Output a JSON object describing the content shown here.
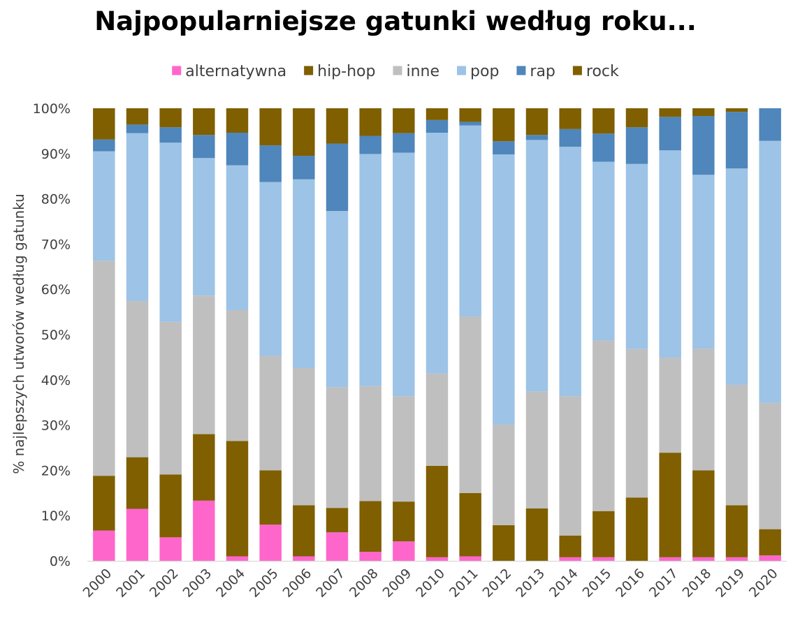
{
  "chart_data": {
    "type": "bar",
    "stacked": true,
    "title": "Najpopularniejsze gatunki według roku...",
    "xlabel": "",
    "ylabel": "% najlepszych utworów według gatunku",
    "ylim": [
      0,
      100
    ],
    "y_ticks": [
      "0%",
      "10%",
      "20%",
      "30%",
      "40%",
      "50%",
      "60%",
      "70%",
      "80%",
      "90%",
      "100%"
    ],
    "grid": false,
    "legend_position": "top",
    "categories": [
      "2000",
      "2001",
      "2002",
      "2003",
      "2004",
      "2005",
      "2006",
      "2007",
      "2008",
      "2009",
      "2010",
      "2011",
      "2012",
      "2013",
      "2014",
      "2015",
      "2016",
      "2017",
      "2018",
      "2019",
      "2020"
    ],
    "series": [
      {
        "name": "alternatywna",
        "color": "#ff66cc",
        "values": [
          6.7,
          11.5,
          5.2,
          13.3,
          1.0,
          8.0,
          1.0,
          6.3,
          2.0,
          4.3,
          0.8,
          1.0,
          0.0,
          0.0,
          0.8,
          0.8,
          0.0,
          0.8,
          0.8,
          0.8,
          1.2
        ]
      },
      {
        "name": "hip-hop",
        "color": "#7f5f00",
        "values": [
          12.1,
          11.4,
          13.9,
          14.7,
          25.5,
          12.0,
          11.3,
          5.4,
          11.2,
          8.8,
          20.2,
          14.0,
          7.9,
          11.6,
          4.8,
          10.2,
          14.0,
          23.1,
          19.2,
          11.5,
          5.8
        ]
      },
      {
        "name": "inne",
        "color": "#bfbfbf",
        "values": [
          47.5,
          34.5,
          33.7,
          30.6,
          28.9,
          25.3,
          30.3,
          26.7,
          25.4,
          23.3,
          20.4,
          39.0,
          22.2,
          25.8,
          30.8,
          37.7,
          32.8,
          21.0,
          26.9,
          26.6,
          27.9
        ]
      },
      {
        "name": "pop",
        "color": "#9dc3e6",
        "values": [
          24.2,
          37.1,
          39.6,
          30.4,
          32.0,
          38.4,
          41.7,
          38.9,
          51.3,
          53.8,
          53.2,
          42.2,
          59.7,
          55.6,
          55.1,
          39.5,
          40.9,
          45.8,
          38.4,
          47.8,
          57.9
        ]
      },
      {
        "name": "rap",
        "color": "#4f86bb",
        "values": [
          2.6,
          1.9,
          3.4,
          5.1,
          7.2,
          8.1,
          5.2,
          14.9,
          4.0,
          4.3,
          2.8,
          0.8,
          2.9,
          1.1,
          3.9,
          6.2,
          8.1,
          7.4,
          13.0,
          12.5,
          7.2
        ]
      },
      {
        "name": "rock",
        "color": "#7f5f00",
        "values": [
          6.9,
          3.6,
          4.2,
          5.9,
          5.4,
          8.2,
          10.5,
          7.8,
          6.1,
          5.5,
          2.6,
          3.0,
          7.3,
          5.9,
          4.6,
          5.6,
          4.2,
          1.9,
          1.7,
          0.8,
          0.0
        ]
      }
    ]
  }
}
